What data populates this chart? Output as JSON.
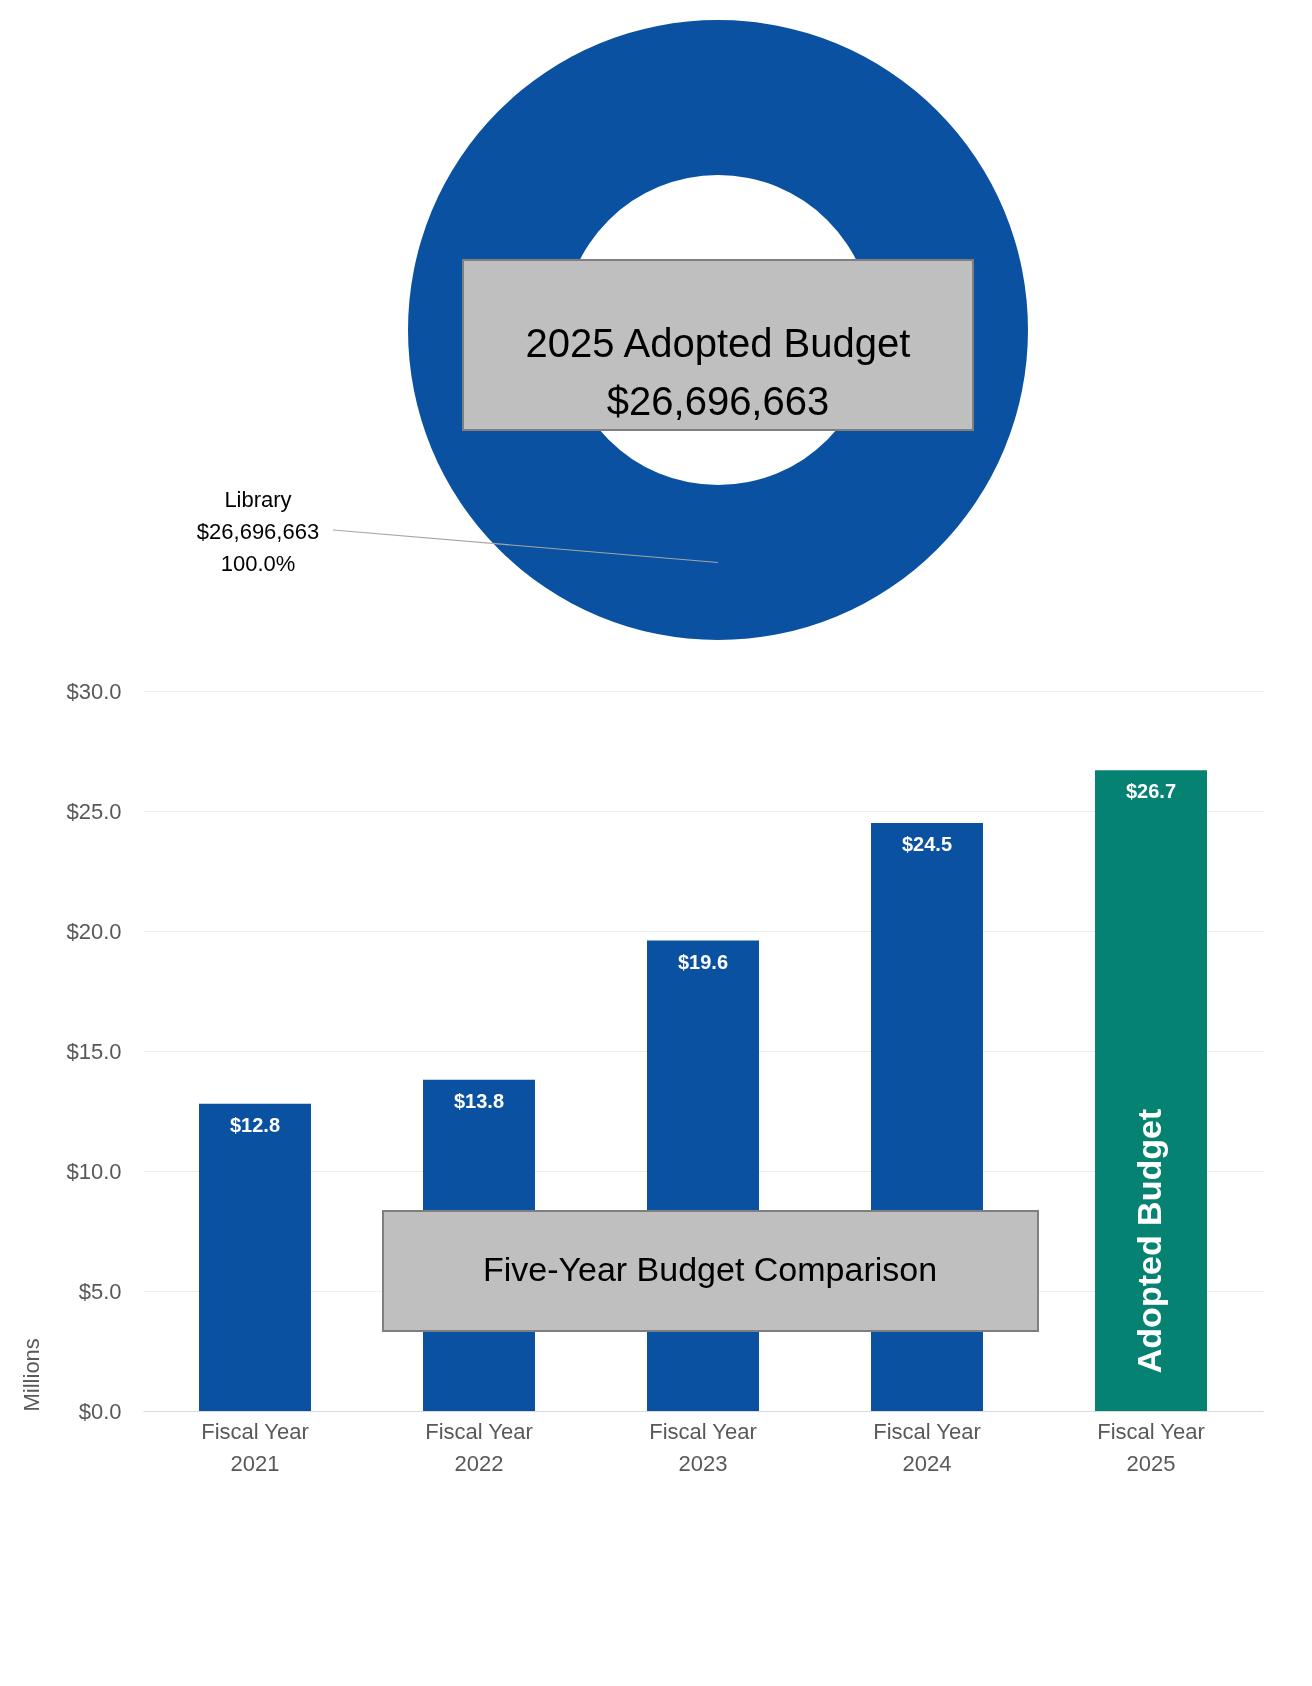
{
  "chart_data": [
    {
      "type": "donut",
      "title": "2025 Adopted Budget",
      "subtitle": "$26,696,663",
      "categories": [
        "Library"
      ],
      "values": [
        26696663
      ],
      "value_labels": [
        "$26,696,663\n100.0%"
      ],
      "colors": [
        "#0b51a1"
      ]
    },
    {
      "type": "bar",
      "title": "Five-Year Budget Comparison",
      "ylabel": "Millions",
      "categories": [
        "Fiscal Year 2021",
        "Fiscal Year 2022",
        "Fiscal Year 2023",
        "Fiscal Year 2024",
        "Fiscal Year 2025"
      ],
      "values": [
        12.8,
        13.8,
        19.6,
        24.5,
        26.7
      ],
      "value_labels": [
        "$12.8",
        "$13.8",
        "$19.6",
        "$24.5",
        "$26.7"
      ],
      "colors": [
        "#0b51a1",
        "#0b51a1",
        "#0b51a1",
        "#0b51a1",
        "#068272"
      ],
      "ylim": [
        0,
        30
      ],
      "yticks": [
        {
          "value": 0,
          "label": "$0.0"
        },
        {
          "value": 5,
          "label": "$5.0"
        },
        {
          "value": 10,
          "label": "$10.0"
        },
        {
          "value": 15,
          "label": "$15.0"
        },
        {
          "value": 20,
          "label": "$20.0"
        },
        {
          "value": 25,
          "label": "$25.0"
        },
        {
          "value": 30,
          "label": "$30.0"
        }
      ],
      "grid": "y",
      "annotations": [
        "Adopted Budget"
      ]
    }
  ]
}
